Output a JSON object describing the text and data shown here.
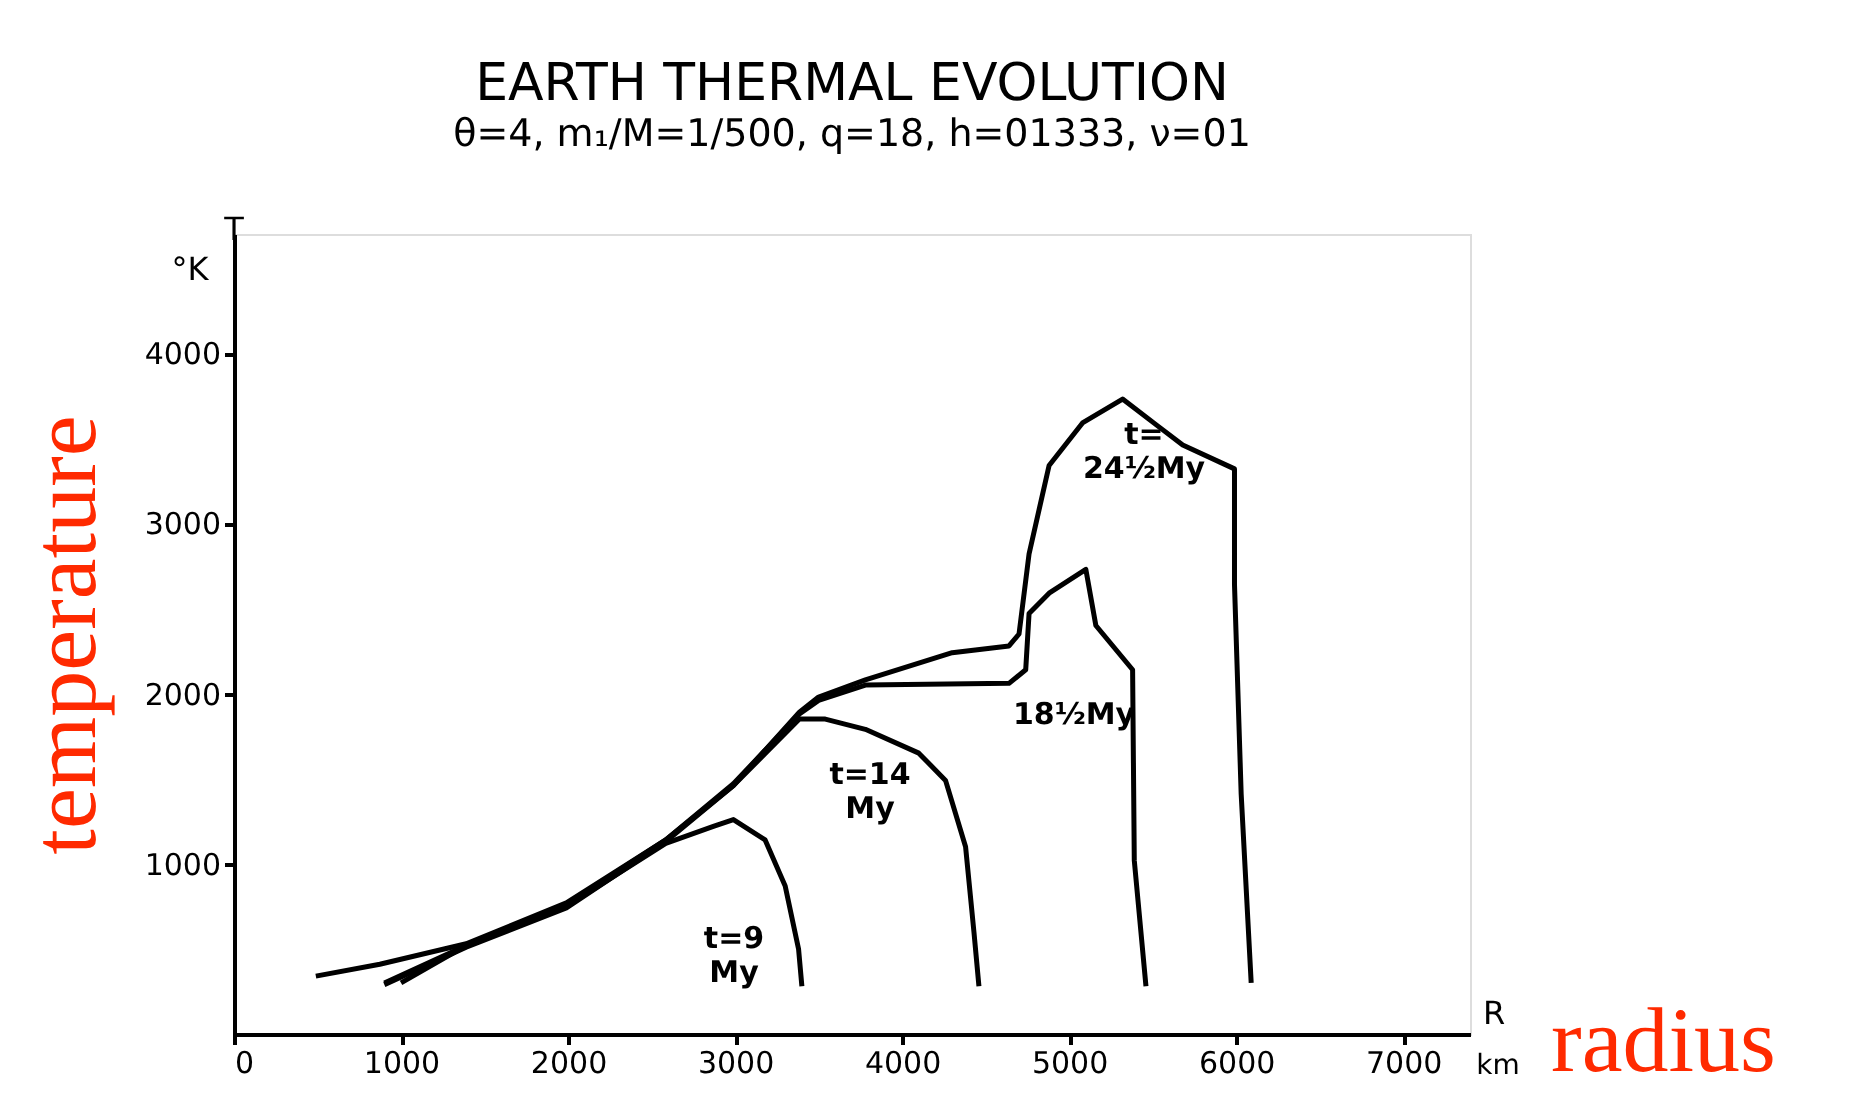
{
  "chart_data": {
    "type": "line",
    "title": "EARTH THERMAL EVOLUTION",
    "subtitle": "θ=4, m₁/M=1/500, q=18, h=01333, ν=01",
    "xlabel": "radius",
    "ylabel": "temperature",
    "xlim": [
      0,
      7400
    ],
    "ylim": [
      0,
      4700
    ],
    "xticks": [
      0,
      1000,
      2000,
      3000,
      4000,
      5000,
      6000,
      7000
    ],
    "yticks": [
      1000,
      2000,
      3000,
      4000
    ],
    "grid": false,
    "legend": false,
    "marker": "none",
    "line_style": "solid",
    "series": [
      {
        "color": "#000000",
        "x": [
          900,
          1390,
          1990,
          2585,
          2870,
          2990,
          3180,
          3300,
          3380,
          3400
        ],
        "values": [
          300,
          520,
          750,
          1120,
          1220,
          1260,
          1140,
          870,
          500,
          280
        ]
      },
      {
        "color": "#000000",
        "x": [
          900,
          1390,
          1990,
          2585,
          2990,
          3385,
          3540,
          3780,
          4100,
          4260,
          4380,
          4430,
          4460
        ],
        "values": [
          290,
          510,
          740,
          1130,
          1460,
          1850,
          1850,
          1790,
          1650,
          1490,
          1100,
          600,
          280
        ]
      },
      {
        "color": "#000000",
        "x": [
          1000,
          1390,
          1990,
          2585,
          2990,
          3385,
          3500,
          3780,
          4640,
          4740,
          4760,
          4880,
          5100,
          5160,
          5380,
          5390,
          5460
        ],
        "values": [
          300,
          520,
          760,
          1140,
          1470,
          1880,
          1960,
          2050,
          2060,
          2140,
          2470,
          2590,
          2730,
          2400,
          2140,
          1020,
          280
        ]
      },
      {
        "color": "#000000",
        "x": [
          490,
          873,
          1390,
          1990,
          2585,
          2990,
          3385,
          3500,
          3780,
          4300,
          4640,
          4700,
          4760,
          4880,
          5080,
          5320,
          5520,
          5680,
          5990,
          5990,
          6030,
          6090
        ],
        "values": [
          340,
          410,
          530,
          770,
          1140,
          1460,
          1890,
          1980,
          2080,
          2240,
          2280,
          2350,
          2820,
          3340,
          3590,
          3730,
          3580,
          3460,
          3320,
          2640,
          1410,
          300
        ]
      }
    ],
    "annotations": [
      "t=9\nMy",
      "t=14\nMy",
      "18½My",
      "t=\n24½My",
      "T",
      "°K",
      "R",
      "km"
    ]
  }
}
